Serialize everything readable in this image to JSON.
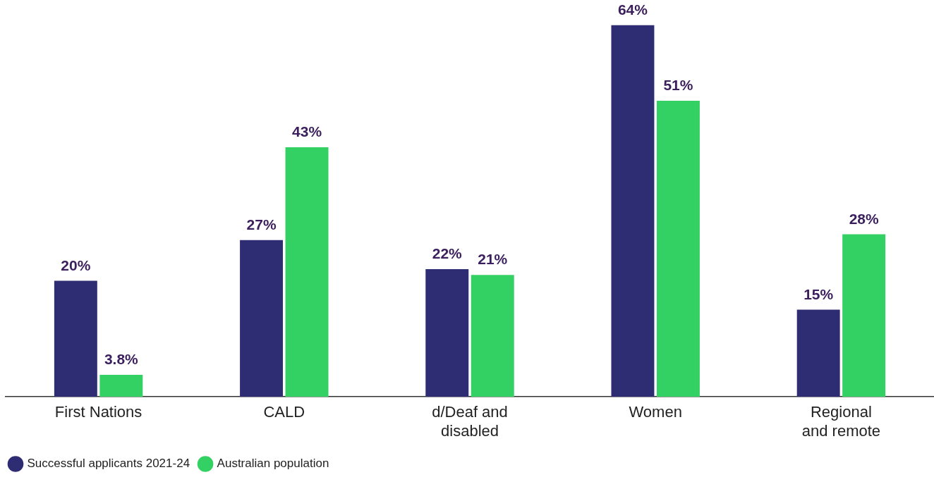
{
  "chart_data": {
    "type": "bar",
    "categories": [
      "First Nations",
      "CALD",
      "d/Deaf and disabled",
      "Women",
      "Regional and remote"
    ],
    "series": [
      {
        "name": "Successful applicants 2021-24",
        "color": "#2e2c73",
        "values": [
          20,
          27,
          22,
          64,
          15
        ],
        "value_labels": [
          "20%",
          "27%",
          "22%",
          "64%",
          "15%"
        ]
      },
      {
        "name": "Australian population",
        "color": "#33d163",
        "values": [
          3.8,
          43,
          21,
          51,
          28
        ],
        "value_labels": [
          "3.8%",
          "43%",
          "21%",
          "51%",
          "28%"
        ]
      }
    ],
    "relative": false,
    "grid": false,
    "legend": "bottom left"
  }
}
